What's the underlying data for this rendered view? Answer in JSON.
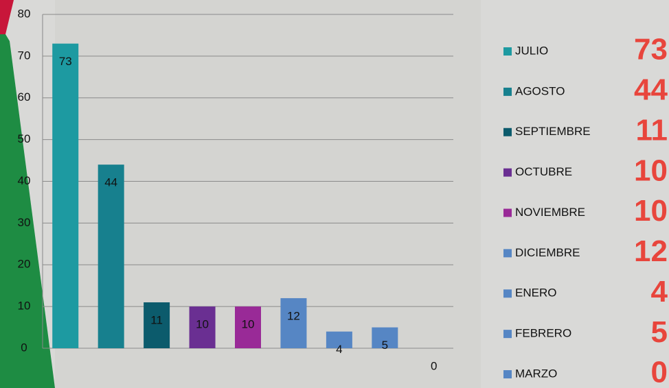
{
  "chart_data": {
    "type": "bar",
    "categories": [
      "JULIO",
      "AGOSTO",
      "SEPTIEMBRE",
      "OCTUBRE",
      "NOVIEMBRE",
      "DICIEMBRE",
      "ENERO",
      "FEBRERO",
      "MARZO"
    ],
    "values": [
      73,
      44,
      11,
      10,
      10,
      12,
      4,
      5,
      0
    ],
    "colors": [
      "#1d9aa1",
      "#17808e",
      "#0c5b6c",
      "#6a2f92",
      "#992a97",
      "#5686c4",
      "#5686c4",
      "#5686c4",
      "#5686c4"
    ],
    "ylim": [
      0,
      80
    ],
    "yticks": [
      0,
      10,
      20,
      30,
      40,
      50,
      60,
      70,
      80
    ],
    "grid": true,
    "legend": "right"
  }
}
